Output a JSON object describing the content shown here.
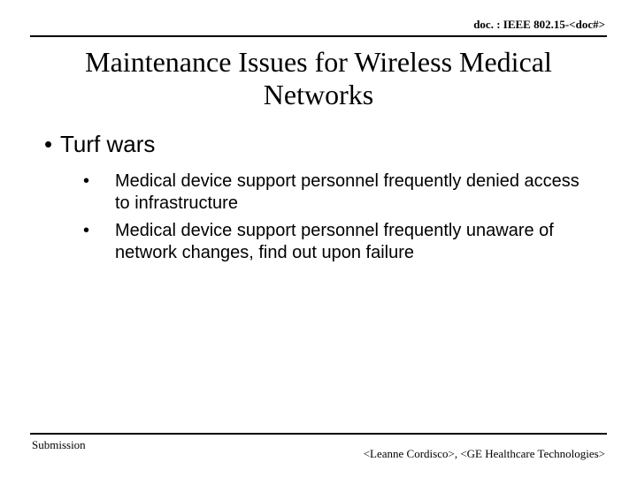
{
  "header": {
    "doc_ref": "doc. : IEEE 802.15-<doc#>"
  },
  "title": "Maintenance Issues for Wireless Medical Networks",
  "content": {
    "bullet1": {
      "text": "Turf wars"
    },
    "sub_bullets": [
      {
        "text": "Medical device support personnel frequently denied access to infrastructure"
      },
      {
        "text": "Medical device support personnel frequently unaware of network changes, find out upon failure"
      }
    ]
  },
  "footer": {
    "left": "Submission",
    "right": "<Leanne Cordisco>, <GE Healthcare Technologies>"
  },
  "style": {
    "background_color": "#ffffff",
    "text_color": "#000000",
    "title_fontsize": 32,
    "b1_fontsize": 26,
    "b2_fontsize": 20,
    "header_fontsize": 13,
    "footer_fontsize": 13,
    "title_font": "Times New Roman",
    "body_font": "Arial",
    "rule_color": "#000000",
    "rule_width": 2
  }
}
